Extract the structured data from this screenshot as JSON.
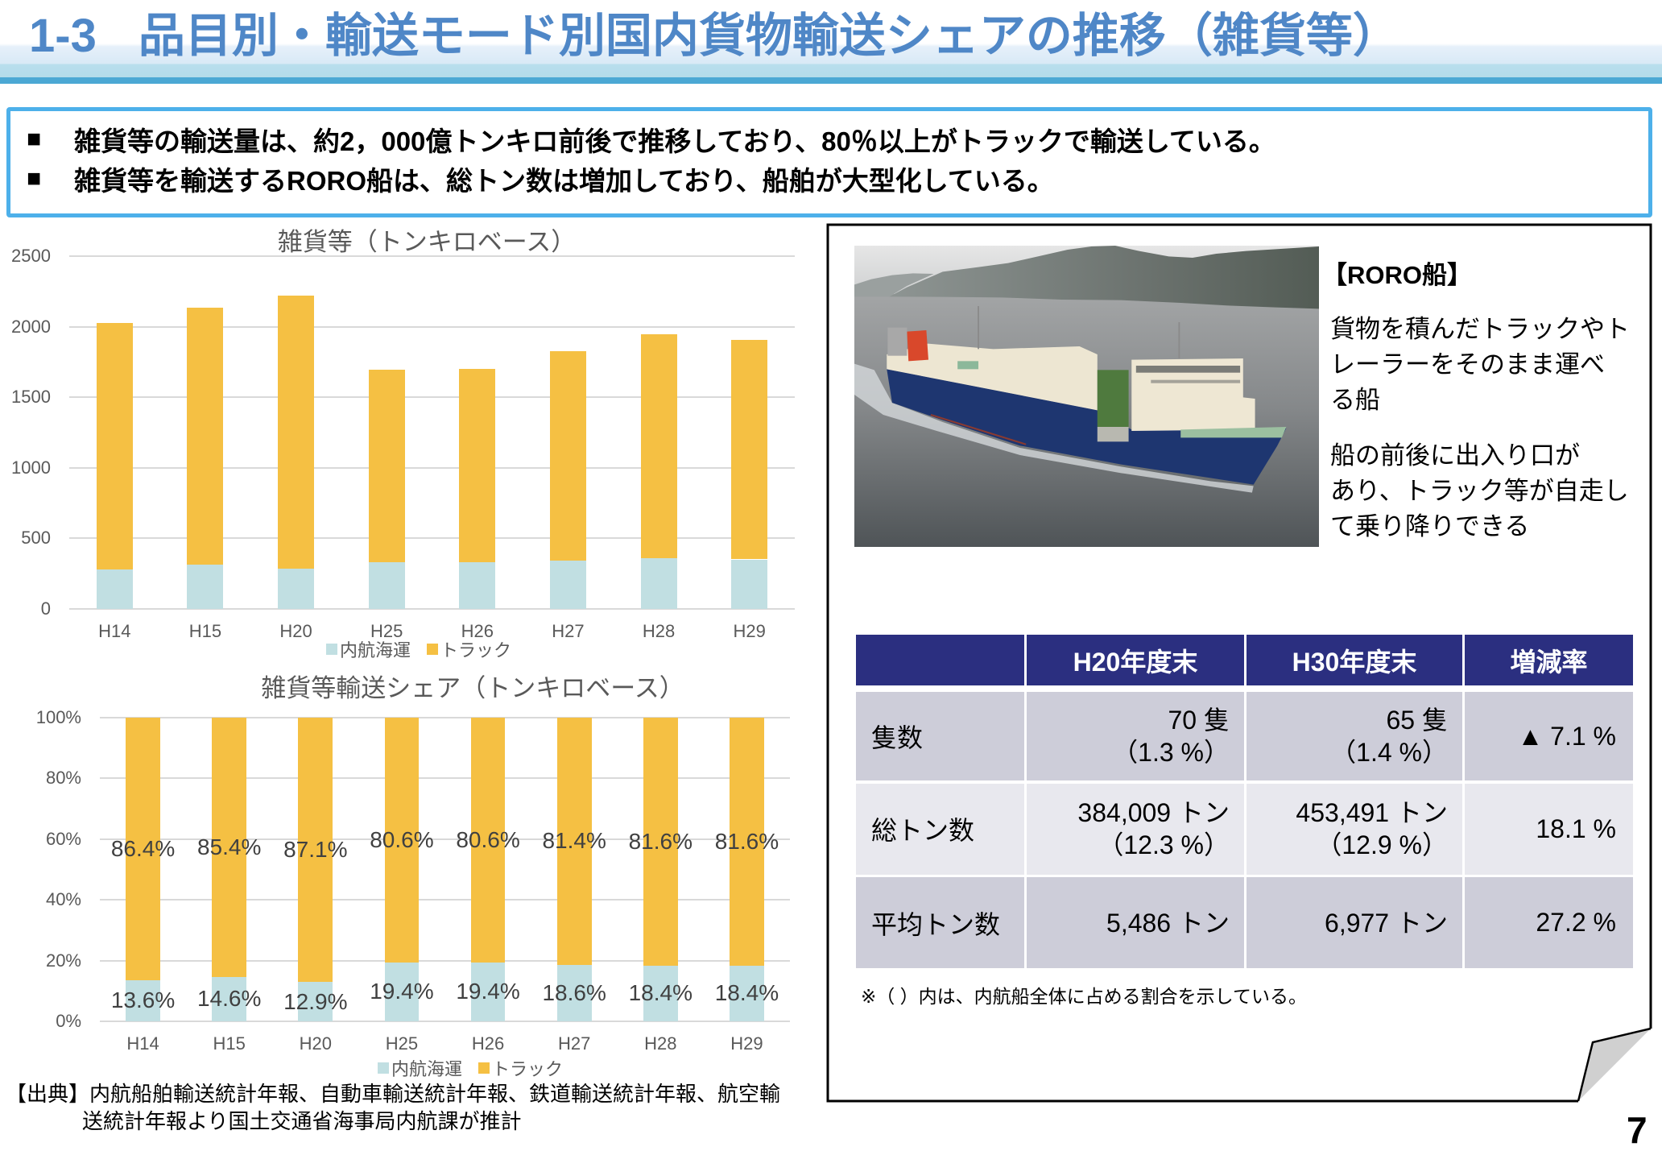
{
  "title": {
    "number": "1-3",
    "text": "品目別・輸送モード別国内貨物輸送シェアの推移（雑貨等）"
  },
  "summary": {
    "bullets": [
      {
        "marker": "■",
        "text": "雑貨等の輸送量は、約2，000億トンキロ前後で推移しており、80％以上がトラックで輸送している。"
      },
      {
        "marker": "■",
        "text": "雑貨等を輸送するRORO船は、総トン数は増加しており、船舶が大型化している。"
      }
    ]
  },
  "chart_data": [
    {
      "type": "bar",
      "stacked": true,
      "title": "雑貨等（トンキロベース）",
      "xlabel": "",
      "ylabel": "",
      "categories": [
        "H14",
        "H15",
        "H20",
        "H25",
        "H26",
        "H27",
        "H28",
        "H29"
      ],
      "series": [
        {
          "name": "内航海運",
          "color": "#C1DFE2",
          "values": [
            277,
            312,
            287,
            330,
            331,
            340,
            358,
            351
          ]
        },
        {
          "name": "トラック",
          "color": "#F5C043",
          "values": [
            1748,
            1821,
            1936,
            1367,
            1370,
            1488,
            1590,
            1558
          ]
        }
      ],
      "totals": [
        2025,
        2133,
        2223,
        1697,
        1701,
        1828,
        1948,
        1909
      ],
      "ylim": [
        0,
        2500
      ],
      "yticks": [
        0,
        500,
        1000,
        1500,
        2000,
        2500
      ],
      "ytick_labels": [
        "0",
        "500",
        "1000",
        "1500",
        "2000",
        "2500"
      ],
      "grid": true,
      "legend_position": "bottom"
    },
    {
      "type": "bar",
      "stacked": true,
      "percent": true,
      "title": "雑貨等輸送シェア（トンキロベース）",
      "xlabel": "",
      "ylabel": "",
      "categories": [
        "H14",
        "H15",
        "H20",
        "H25",
        "H26",
        "H27",
        "H28",
        "H29"
      ],
      "series": [
        {
          "name": "内航海運",
          "color": "#C1DFE2",
          "values": [
            13.6,
            14.6,
            12.9,
            19.4,
            19.4,
            18.6,
            18.4,
            18.4
          ],
          "labels": [
            "13.6%",
            "14.6%",
            "12.9%",
            "19.4%",
            "19.4%",
            "18.6%",
            "18.4%",
            "18.4%"
          ]
        },
        {
          "name": "トラック",
          "color": "#F5C043",
          "values": [
            86.4,
            85.4,
            87.1,
            80.6,
            80.6,
            81.4,
            81.6,
            81.6
          ],
          "labels": [
            "86.4%",
            "85.4%",
            "87.1%",
            "80.6%",
            "80.6%",
            "81.4%",
            "81.6%",
            "81.6%"
          ]
        }
      ],
      "ylim": [
        0,
        100
      ],
      "yticks": [
        0,
        20,
        40,
        60,
        80,
        100
      ],
      "ytick_labels": [
        "0%",
        "20%",
        "40%",
        "60%",
        "80%",
        "100%"
      ],
      "grid": true,
      "legend_position": "bottom"
    }
  ],
  "roro": {
    "heading": "【RORO船】",
    "paragraphs": [
      [
        "貨物を積んだトラックやト",
        "レーラーをそのまま運べ",
        "る船"
      ],
      [
        "船の前後に出入り口が",
        "あり、トラック等が自走し",
        "て乗り降りできる"
      ]
    ]
  },
  "table": {
    "headers": [
      "",
      "H20年度末",
      "H30年度末",
      "増減率"
    ],
    "rows": [
      {
        "label": "隻数",
        "h20": [
          "70 隻",
          "（1.3 %）"
        ],
        "h30": [
          "65 隻",
          "（1.4 %）"
        ],
        "change": "▲ 7.1 %"
      },
      {
        "label": "総トン数",
        "h20": [
          "384,009 トン",
          "（12.3 %）"
        ],
        "h30": [
          "453,491 トン",
          "（12.9 %）"
        ],
        "change": "18.1 %"
      },
      {
        "label": "平均トン数",
        "h20": [
          "5,486 トン"
        ],
        "h30": [
          "6,977 トン"
        ],
        "change": "27.2 %"
      }
    ],
    "note": "※（ ）内は、内航船全体に占める割合を示している。"
  },
  "source": {
    "lines": [
      "【出典】内航船舶輸送統計年報、自動車輸送統計年報、鉄道輸送統計年報、航空輸",
      "送統計年報より国土交通省海事局内航課が推計"
    ]
  },
  "page_number": "7",
  "colors": {
    "title": "#4F87C7",
    "title_rule": "#4BA8D4",
    "summary_border": "#4DB0EA",
    "inland_shipping": "#C1DFE2",
    "truck": "#F5C043",
    "table_header": "#2B2F80",
    "table_row_dark": "#CDCDD9",
    "table_row_light": "#E8E8EE"
  }
}
